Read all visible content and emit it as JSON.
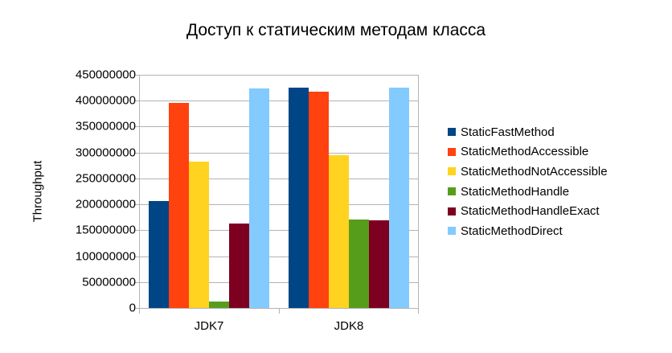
{
  "chart_data": {
    "type": "bar",
    "title": "Доступ к статическим методам класса",
    "xlabel": "",
    "ylabel": "Throughput",
    "ylim": [
      0,
      450000000
    ],
    "yticks": [
      "0",
      "50000000",
      "100000000",
      "150000000",
      "200000000",
      "250000000",
      "300000000",
      "350000000",
      "400000000",
      "450000000"
    ],
    "grid": true,
    "legend_position": "right",
    "categories": [
      "JDK7",
      "JDK8"
    ],
    "series": [
      {
        "name": "StaticFastMethod",
        "color": "#004586",
        "values": [
          207000000,
          425000000
        ]
      },
      {
        "name": "StaticMethodAccessible",
        "color": "#ff420e",
        "values": [
          395000000,
          417000000
        ]
      },
      {
        "name": "StaticMethodNotAccessible",
        "color": "#ffd320",
        "values": [
          283000000,
          295000000
        ]
      },
      {
        "name": "StaticMethodHandle",
        "color": "#579d1c",
        "values": [
          13000000,
          170000000
        ]
      },
      {
        "name": "StaticMethodHandleExact",
        "color": "#7e0021",
        "values": [
          163000000,
          169000000
        ]
      },
      {
        "name": "StaticMethodDirect",
        "color": "#83caff",
        "values": [
          423000000,
          425000000
        ]
      }
    ]
  }
}
